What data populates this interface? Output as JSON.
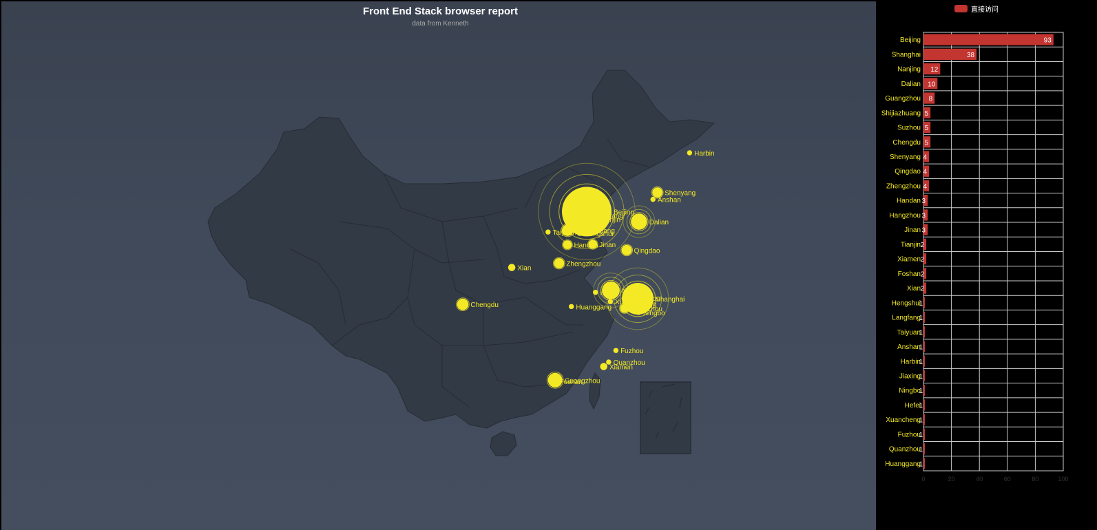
{
  "chart_data": [
    {
      "type": "scatter",
      "title": "Front End Stack browser report",
      "subtitle": "data from Kenneth",
      "map": "china",
      "point_color": "#f4e925",
      "points": [
        {
          "name": "Beijing",
          "value": 93
        },
        {
          "name": "Shanghai",
          "value": 38
        },
        {
          "name": "Nanjing",
          "value": 12
        },
        {
          "name": "Dalian",
          "value": 10
        },
        {
          "name": "Guangzhou",
          "value": 8
        },
        {
          "name": "Shijiazhuang",
          "value": 5
        },
        {
          "name": "Suzhou",
          "value": 5
        },
        {
          "name": "Chengdu",
          "value": 5
        },
        {
          "name": "Shenyang",
          "value": 4
        },
        {
          "name": "Qingdao",
          "value": 4
        },
        {
          "name": "Zhengzhou",
          "value": 4
        },
        {
          "name": "Handan",
          "value": 3
        },
        {
          "name": "Hangzhou",
          "value": 3
        },
        {
          "name": "Jinan",
          "value": 3
        },
        {
          "name": "Tianjin",
          "value": 2
        },
        {
          "name": "Xiamen",
          "value": 2
        },
        {
          "name": "Foshan",
          "value": 2
        },
        {
          "name": "Xian",
          "value": 2
        },
        {
          "name": "Hengshui",
          "value": 1
        },
        {
          "name": "Langfang",
          "value": 1
        },
        {
          "name": "Taiyuan",
          "value": 1
        },
        {
          "name": "Anshan",
          "value": 1
        },
        {
          "name": "Harbin",
          "value": 1
        },
        {
          "name": "Jiaxing",
          "value": 1
        },
        {
          "name": "Ningbo",
          "value": 1
        },
        {
          "name": "Hefei",
          "value": 1
        },
        {
          "name": "Xuancheng",
          "value": 1
        },
        {
          "name": "Fuzhou",
          "value": 1
        },
        {
          "name": "Quanzhou",
          "value": 1
        },
        {
          "name": "Huanggang",
          "value": 1
        }
      ]
    },
    {
      "type": "bar",
      "orientation": "horizontal",
      "legend": [
        "直接访问"
      ],
      "legend_position": "top",
      "bar_color": "#c23531",
      "label_color": "#f4e925",
      "categories": [
        "Beijing",
        "Shanghai",
        "Nanjing",
        "Dalian",
        "Guangzhou",
        "Shijiazhuang",
        "Suzhou",
        "Chengdu",
        "Shenyang",
        "Qingdao",
        "Zhengzhou",
        "Handan",
        "Hangzhou",
        "Jinan",
        "Tianjin",
        "Xiamen",
        "Foshan",
        "Xian",
        "Hengshui",
        "Langfang",
        "Taiyuan",
        "Anshan",
        "Harbin",
        "Jiaxing",
        "Ningbo",
        "Hefei",
        "Xuancheng",
        "Fuzhou",
        "Quanzhou",
        "Huanggang"
      ],
      "series": [
        {
          "name": "直接访问",
          "values": [
            93,
            38,
            12,
            10,
            8,
            5,
            5,
            5,
            4,
            4,
            4,
            3,
            3,
            3,
            2,
            2,
            2,
            2,
            1,
            1,
            1,
            1,
            1,
            1,
            1,
            1,
            1,
            1,
            1,
            1
          ]
        }
      ],
      "xlim": [
        0,
        100
      ],
      "x_ticks": [
        0,
        20,
        40,
        60,
        80,
        100
      ],
      "grid": true
    }
  ]
}
